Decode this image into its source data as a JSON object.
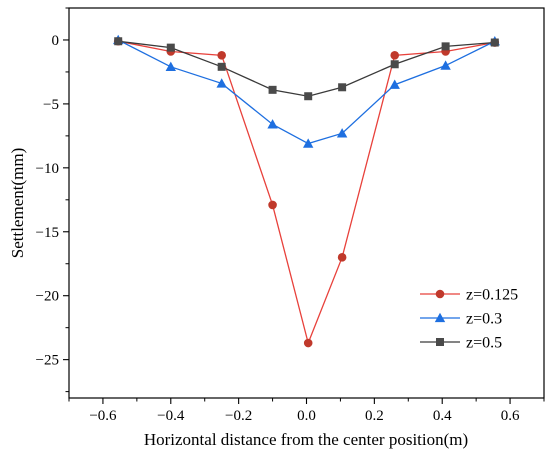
{
  "chart_data": {
    "type": "line",
    "title": "",
    "xlabel": "Horizontal distance from the center position(m)",
    "ylabel": "Settlement(mm)",
    "xlim": [
      -0.7,
      0.7
    ],
    "ylim": [
      -28,
      2.5
    ],
    "xticks": [
      -0.6,
      -0.4,
      -0.2,
      0.0,
      0.2,
      0.4,
      0.6
    ],
    "xtick_labels": [
      "−0.6",
      "−0.4",
      "−0.2",
      "0.0",
      "0.2",
      "0.4",
      "0.6"
    ],
    "yticks": [
      0,
      -5,
      -10,
      -15,
      -20,
      -25
    ],
    "ytick_labels": [
      "0",
      "−5",
      "−10",
      "−15",
      "−20",
      "−25"
    ],
    "grid": false,
    "legend_position": "bottom-right",
    "series": [
      {
        "name": "z=0.125",
        "color": "#e8413b",
        "marker_color": "#c0392b",
        "marker": "circle",
        "x": [
          -0.555,
          -0.4,
          -0.25,
          -0.1,
          0.005,
          0.105,
          0.26,
          0.41,
          0.555
        ],
        "y": [
          -0.1,
          -0.9,
          -1.2,
          -12.9,
          -23.7,
          -17.0,
          -1.2,
          -0.9,
          -0.2
        ]
      },
      {
        "name": "z=0.3",
        "color": "#1e6fe0",
        "marker_color": "#1e6fe0",
        "marker": "triangle",
        "x": [
          -0.555,
          -0.4,
          -0.25,
          -0.1,
          0.005,
          0.105,
          0.26,
          0.41,
          0.555
        ],
        "y": [
          0.0,
          -2.1,
          -3.4,
          -6.6,
          -8.1,
          -7.3,
          -3.5,
          -2.0,
          -0.1
        ]
      },
      {
        "name": "z=0.5",
        "color": "#3a3a3a",
        "marker_color": "#4a4a4a",
        "marker": "square",
        "x": [
          -0.555,
          -0.4,
          -0.25,
          -0.1,
          0.005,
          0.105,
          0.26,
          0.41,
          0.555
        ],
        "y": [
          -0.1,
          -0.6,
          -2.1,
          -3.9,
          -4.4,
          -3.7,
          -1.9,
          -0.5,
          -0.2
        ]
      }
    ]
  }
}
